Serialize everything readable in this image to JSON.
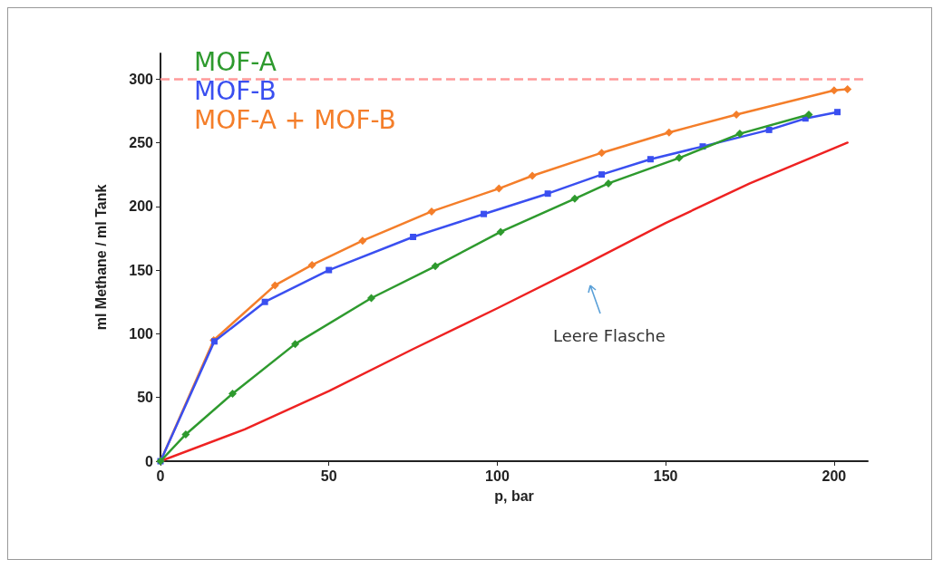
{
  "chart_data": {
    "type": "line",
    "xlabel": "p, bar",
    "ylabel": "ml Methane / ml Tank",
    "xlim": [
      0,
      210
    ],
    "xticks": [
      0,
      50,
      100,
      150,
      200
    ],
    "ylim": [
      0,
      320
    ],
    "yticks": [
      0,
      50,
      100,
      150,
      200,
      250,
      300
    ],
    "grid": false,
    "legend": "top left",
    "line_style": "solid",
    "series": [
      {
        "name": "MOF-A",
        "color": "#2e9a2e",
        "marker": "diamond",
        "x": [
          0,
          7.5,
          21.4,
          40,
          62.6,
          81.6,
          101,
          123,
          133,
          154,
          172,
          192.5
        ],
        "values": [
          0,
          21,
          53,
          92,
          128,
          153,
          180,
          206,
          218,
          238,
          257,
          272
        ]
      },
      {
        "name": "MOF-B",
        "color": "#3a4ff0",
        "marker": "square",
        "x": [
          0,
          16,
          31,
          50,
          75,
          96,
          115,
          131,
          145.5,
          161,
          180.7,
          191.5,
          201
        ],
        "values": [
          0,
          94,
          125,
          150,
          176,
          194,
          210,
          225,
          237,
          247,
          260,
          269,
          274
        ]
      },
      {
        "name": "MOF-A + MOF-B",
        "color": "#f47e2a",
        "marker": "diamond",
        "x": [
          0,
          15.8,
          34,
          45,
          60,
          80.5,
          100.5,
          110.4,
          131,
          151,
          171,
          200,
          204
        ],
        "values": [
          0,
          95,
          138,
          154,
          173,
          196,
          214,
          224,
          242,
          258,
          272,
          291,
          292
        ]
      },
      {
        "color": "#ee2222",
        "marker": "none",
        "x": [
          0,
          25,
          50,
          75,
          100,
          125,
          150,
          175,
          204
        ],
        "values": [
          0,
          25,
          55,
          88,
          120,
          153,
          187,
          218,
          250
        ]
      }
    ],
    "ref_lines": [
      {
        "axis": "y",
        "value": 300,
        "color": "#ff9a9a",
        "line_style": "dashed"
      }
    ],
    "annotations": [
      "Leere Flasche"
    ]
  }
}
